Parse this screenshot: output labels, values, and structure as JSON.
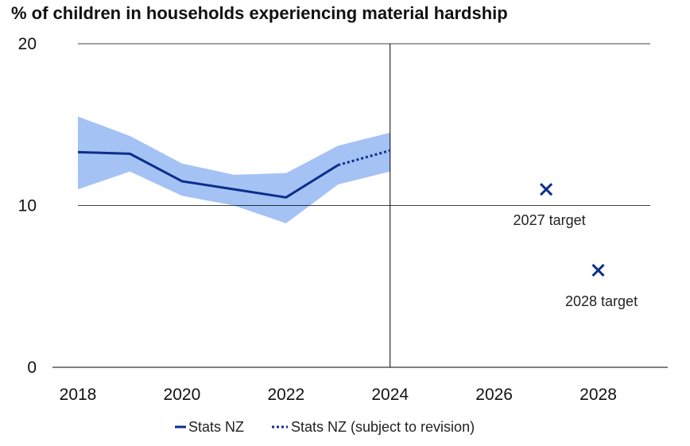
{
  "chart_data": {
    "type": "line",
    "title": "% of children in households experiencing material hardship",
    "xlabel": "",
    "ylabel": "",
    "xlim": [
      2018,
      2029
    ],
    "ylim": [
      0,
      20
    ],
    "x_ticks": [
      2018,
      2020,
      2022,
      2024,
      2026,
      2028
    ],
    "y_ticks": [
      0,
      10,
      20
    ],
    "grid": "horizontal",
    "vertical_marker_x": 2024,
    "series": [
      {
        "name": "Stats NZ",
        "style": "solid",
        "color": "#0b2f8a",
        "x": [
          2018,
          2019,
          2020,
          2021,
          2022,
          2023
        ],
        "y": [
          13.3,
          13.2,
          11.5,
          11.0,
          10.5,
          12.5
        ]
      },
      {
        "name": "Stats NZ (subject to revision)",
        "style": "dotted",
        "color": "#0b2f8a",
        "x": [
          2023,
          2024
        ],
        "y": [
          12.5,
          13.4
        ]
      }
    ],
    "confidence_band": {
      "color": "#a4c2f4",
      "x": [
        2018,
        2019,
        2020,
        2021,
        2022,
        2023,
        2024
      ],
      "lower": [
        11.0,
        12.1,
        10.6,
        10.0,
        8.9,
        11.3,
        12.1
      ],
      "upper": [
        15.5,
        14.3,
        12.6,
        11.9,
        12.0,
        13.7,
        14.5
      ]
    },
    "targets": [
      {
        "label": "2027 target",
        "x": 2027,
        "y": 11.0,
        "marker": "x",
        "color": "#0b2f8a"
      },
      {
        "label": "2028 target",
        "x": 2028,
        "y": 6.0,
        "marker": "x",
        "color": "#0b2f8a"
      }
    ],
    "legend_position": "bottom"
  }
}
